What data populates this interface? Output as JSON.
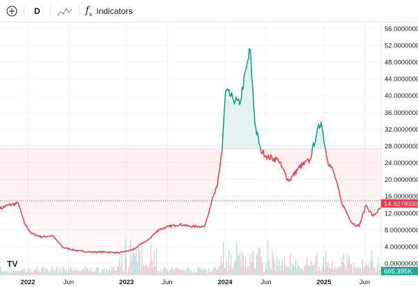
{
  "toolbar": {
    "add_symbol_icon": "plus-circle-icon",
    "interval": "D",
    "chart_type_icon": "baseline-chart-icon",
    "indicators_icon": "fx-icon",
    "indicators_label": "Indicators"
  },
  "colors": {
    "up": "#089981",
    "down": "#f23645",
    "up_fill": "#e3f4f0",
    "down_fill": "#fde3e5",
    "grid": "#f0f3fa"
  },
  "chart_data": {
    "type": "line",
    "style": "baseline",
    "baseline_value": 27.3,
    "ylim": [
      -3,
      58
    ],
    "grid": true,
    "y_ticks": [
      "56.00000000",
      "52.00000000",
      "48.00000000",
      "44.00000000",
      "40.00000000",
      "36.00000000",
      "32.00000000",
      "28.00000000",
      "24.00000000",
      "20.00000000",
      "16.00000000",
      "12.00000000",
      "8.00000000",
      "4.00000000",
      "0.00000000"
    ],
    "x_ticks": [
      {
        "label": "2022",
        "date": "2022-01-01"
      },
      {
        "label": "Jun",
        "date": "2022-06-01"
      },
      {
        "label": "2023",
        "date": "2023-01-01"
      },
      {
        "label": "Jun",
        "date": "2023-06-01"
      },
      {
        "label": "2024",
        "date": "2024-01-01"
      },
      {
        "label": "Jun",
        "date": "2024-06-01"
      },
      {
        "label": "2025",
        "date": "2025-01-01"
      },
      {
        "label": "Jun",
        "date": "2025-06-01"
      }
    ],
    "last_price": "14.92783333",
    "last_volume": "685.395K",
    "points": [
      [
        "2021-09-20",
        13
      ],
      [
        "2021-10-17",
        13.8
      ],
      [
        "2021-11-26",
        14.3
      ],
      [
        "2021-12-19",
        9.6
      ],
      [
        "2022-01-14",
        7.1
      ],
      [
        "2022-02-22",
        6.3
      ],
      [
        "2022-04-02",
        6.6
      ],
      [
        "2022-05-11",
        3.8
      ],
      [
        "2022-07-02",
        3.0
      ],
      [
        "2022-08-24",
        2.7
      ],
      [
        "2022-10-15",
        2.7
      ],
      [
        "2022-12-07",
        2.5
      ],
      [
        "2023-01-28",
        3.3
      ],
      [
        "2023-02-23",
        4.6
      ],
      [
        "2023-03-21",
        5.5
      ],
      [
        "2023-04-30",
        8
      ],
      [
        "2023-06-08",
        8.8
      ],
      [
        "2023-07-18",
        9.3
      ],
      [
        "2023-08-26",
        8.8
      ],
      [
        "2023-10-17",
        8.8
      ],
      [
        "2023-11-12",
        14.6
      ],
      [
        "2023-12-03",
        18.3
      ],
      [
        "2023-12-21",
        27
      ],
      [
        "2024-01-03",
        41
      ],
      [
        "2024-01-29",
        39.5
      ],
      [
        "2024-02-24",
        37.9
      ],
      [
        "2024-03-21",
        47
      ],
      [
        "2024-04-03",
        51
      ],
      [
        "2024-04-21",
        33
      ],
      [
        "2024-05-12",
        27
      ],
      [
        "2024-06-07",
        25.4
      ],
      [
        "2024-07-16",
        24.6
      ],
      [
        "2024-08-24",
        19.6
      ],
      [
        "2024-10-02",
        22.9
      ],
      [
        "2024-11-10",
        24.6
      ],
      [
        "2024-12-06",
        31.2
      ],
      [
        "2024-12-22",
        33.7
      ],
      [
        "2025-01-14",
        24.6
      ],
      [
        "2025-02-09",
        21.3
      ],
      [
        "2025-03-07",
        14.6
      ],
      [
        "2025-04-15",
        9.6
      ],
      [
        "2025-05-11",
        8.8
      ],
      [
        "2025-06-06",
        13.8
      ],
      [
        "2025-07-02",
        11.3
      ],
      [
        "2025-07-28",
        13
      ],
      [
        "2025-08-15",
        14.93
      ]
    ]
  }
}
